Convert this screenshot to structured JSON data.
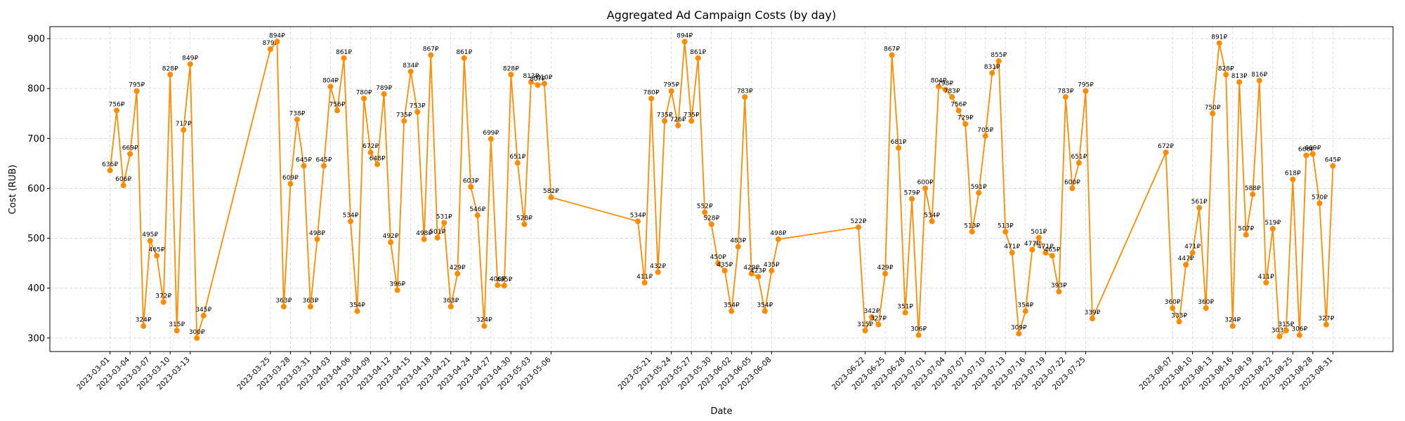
{
  "chart_data": {
    "type": "line",
    "title": "Aggregated Ad Campaign Costs (by day)",
    "xlabel": "Date",
    "ylabel": "Cost (RUB)",
    "color": "#ff8c00",
    "grid": true,
    "x": [
      "2023-03-01",
      "2023-03-02",
      "2023-03-03",
      "2023-03-04",
      "2023-03-05",
      "2023-03-06",
      "2023-03-07",
      "2023-03-08",
      "2023-03-09",
      "2023-03-10",
      "2023-03-11",
      "2023-03-12",
      "2023-03-13",
      "2023-03-14",
      "2023-03-15",
      "2023-03-25",
      "2023-03-26",
      "2023-03-27",
      "2023-03-28",
      "2023-03-29",
      "2023-03-30",
      "2023-03-31",
      "2023-04-01",
      "2023-04-02",
      "2023-04-03",
      "2023-04-04",
      "2023-04-05",
      "2023-04-06",
      "2023-04-07",
      "2023-04-08",
      "2023-04-09",
      "2023-04-10",
      "2023-04-11",
      "2023-04-12",
      "2023-04-13",
      "2023-04-14",
      "2023-04-15",
      "2023-04-16",
      "2023-04-17",
      "2023-04-18",
      "2023-04-19",
      "2023-04-20",
      "2023-04-21",
      "2023-04-22",
      "2023-04-23",
      "2023-04-24",
      "2023-04-25",
      "2023-04-26",
      "2023-04-27",
      "2023-04-28",
      "2023-04-29",
      "2023-04-30",
      "2023-05-01",
      "2023-05-02",
      "2023-05-03",
      "2023-05-04",
      "2023-05-05",
      "2023-05-06",
      "2023-05-19",
      "2023-05-20",
      "2023-05-21",
      "2023-05-22",
      "2023-05-23",
      "2023-05-24",
      "2023-05-25",
      "2023-05-26",
      "2023-05-27",
      "2023-05-28",
      "2023-05-29",
      "2023-05-30",
      "2023-05-31",
      "2023-06-01",
      "2023-06-02",
      "2023-06-03",
      "2023-06-04",
      "2023-06-05",
      "2023-06-06",
      "2023-06-07",
      "2023-06-08",
      "2023-06-09",
      "2023-06-21",
      "2023-06-22",
      "2023-06-23",
      "2023-06-24",
      "2023-06-25",
      "2023-06-26",
      "2023-06-27",
      "2023-06-28",
      "2023-06-29",
      "2023-06-30",
      "2023-07-01",
      "2023-07-02",
      "2023-07-03",
      "2023-07-04",
      "2023-07-05",
      "2023-07-06",
      "2023-07-07",
      "2023-07-08",
      "2023-07-09",
      "2023-07-10",
      "2023-07-11",
      "2023-07-12",
      "2023-07-13",
      "2023-07-14",
      "2023-07-15",
      "2023-07-16",
      "2023-07-17",
      "2023-07-18",
      "2023-07-19",
      "2023-07-20",
      "2023-07-21",
      "2023-07-22",
      "2023-07-23",
      "2023-07-24",
      "2023-07-25",
      "2023-07-26",
      "2023-08-06",
      "2023-08-07",
      "2023-08-08",
      "2023-08-09",
      "2023-08-10",
      "2023-08-11",
      "2023-08-12",
      "2023-08-13",
      "2023-08-14",
      "2023-08-15",
      "2023-08-16",
      "2023-08-17",
      "2023-08-18",
      "2023-08-19",
      "2023-08-20",
      "2023-08-21",
      "2023-08-22",
      "2023-08-23",
      "2023-08-24",
      "2023-08-25",
      "2023-08-26",
      "2023-08-27",
      "2023-08-28",
      "2023-08-29",
      "2023-08-30",
      "2023-08-31"
    ],
    "values": [
      636,
      756,
      606,
      669,
      795,
      324,
      495,
      465,
      372,
      828,
      315,
      717,
      849,
      300,
      345,
      879,
      894,
      363,
      609,
      738,
      645,
      363,
      498,
      645,
      804,
      756,
      861,
      534,
      354,
      780,
      672,
      648,
      789,
      492,
      396,
      735,
      834,
      753,
      498,
      867,
      501,
      531,
      363,
      429,
      861,
      603,
      546,
      324,
      699,
      406,
      405,
      828,
      651,
      528,
      813,
      807,
      810,
      582,
      534,
      411,
      780,
      432,
      735,
      795,
      726,
      894,
      735,
      861,
      552,
      528,
      450,
      435,
      354,
      483,
      783,
      429,
      423,
      354,
      435,
      498,
      522,
      315,
      342,
      327,
      429,
      867,
      681,
      351,
      579,
      306,
      600,
      534,
      804,
      798,
      783,
      756,
      729,
      513,
      591,
      705,
      831,
      855,
      513,
      471,
      309,
      354,
      477,
      501,
      471,
      465,
      393,
      783,
      600,
      651,
      795,
      339,
      672,
      360,
      333,
      447,
      471,
      561,
      360,
      750,
      891,
      828,
      324,
      813,
      507,
      588,
      816,
      411,
      519,
      303,
      315,
      618,
      306,
      666,
      669,
      570,
      327,
      645
    ],
    "value_labels": [
      "636₽",
      "756₽",
      "606₽",
      "669₽",
      "795₽",
      "324₽",
      "495₽",
      "465₽",
      "372₽",
      "828₽",
      "315₽",
      "717₽",
      "849₽",
      "300₽",
      "345₽",
      "879₽",
      "894₽",
      "363₽",
      "609₽",
      "738₽",
      "645₽",
      "363₽",
      "498₽",
      "645₽",
      "804₽",
      "756₽",
      "861₽",
      "534₽",
      "354₽",
      "780₽",
      "672₽",
      "648₽",
      "789₽",
      "492₽",
      "396₽",
      "735₽",
      "834₽",
      "753₽",
      "498₽",
      "867₽",
      "501₽",
      "531₽",
      "363₽",
      "429₽",
      "861₽",
      "603₽",
      "546₽",
      "324₽",
      "699₽",
      "406₽",
      "405₽",
      "828₽",
      "651₽",
      "528₽",
      "813₽",
      "807₽",
      "810₽",
      "582₽",
      "534₽",
      "411₽",
      "780₽",
      "432₽",
      "735₽",
      "795₽",
      "726₽",
      "894₽",
      "735₽",
      "861₽",
      "552₽",
      "528₽",
      "450₽",
      "435₽",
      "354₽",
      "483₽",
      "783₽",
      "429₽",
      "423₽",
      "354₽",
      "435₽",
      "498₽",
      "522₽",
      "315₽",
      "342₽",
      "327₽",
      "429₽",
      "867₽",
      "681₽",
      "351₽",
      "579₽",
      "306₽",
      "600₽",
      "534₽",
      "804₽",
      "798₽",
      "783₽",
      "756₽",
      "729₽",
      "513₽",
      "591₽",
      "705₽",
      "831₽",
      "855₽",
      "513₽",
      "471₽",
      "309₽",
      "354₽",
      "477₽",
      "501₽",
      "471₽",
      "465₽",
      "393₽",
      "783₽",
      "600₽",
      "651₽",
      "795₽",
      "339₽",
      "672₽",
      "360₽",
      "333₽",
      "447₽",
      "471₽",
      "561₽",
      "360₽",
      "750₽",
      "891₽",
      "828₽",
      "324₽",
      "813₽",
      "507₽",
      "588₽",
      "816₽",
      "411₽",
      "519₽",
      "303₽",
      "315₽",
      "618₽",
      "306₽",
      "666₽",
      "669₽",
      "570₽",
      "327₽",
      "645₽"
    ],
    "xlim": [
      "2023-02-20",
      "2023-09-09"
    ],
    "xticks": [
      "2023-03-01",
      "2023-03-04",
      "2023-03-07",
      "2023-03-10",
      "2023-03-13",
      "2023-03-25",
      "2023-03-28",
      "2023-03-31",
      "2023-04-03",
      "2023-04-06",
      "2023-04-09",
      "2023-04-12",
      "2023-04-15",
      "2023-04-18",
      "2023-04-21",
      "2023-04-24",
      "2023-04-27",
      "2023-04-30",
      "2023-05-03",
      "2023-05-06",
      "2023-05-21",
      "2023-05-24",
      "2023-05-27",
      "2023-05-30",
      "2023-06-02",
      "2023-06-05",
      "2023-06-08",
      "2023-06-22",
      "2023-06-25",
      "2023-06-28",
      "2023-07-01",
      "2023-07-04",
      "2023-07-07",
      "2023-07-10",
      "2023-07-13",
      "2023-07-16",
      "2023-07-19",
      "2023-07-22",
      "2023-07-25",
      "2023-08-07",
      "2023-08-10",
      "2023-08-13",
      "2023-08-16",
      "2023-08-19",
      "2023-08-22",
      "2023-08-25",
      "2023-08-28",
      "2023-08-31"
    ],
    "ylim": [
      273,
      924
    ],
    "yticks": [
      300,
      400,
      500,
      600,
      700,
      800,
      900
    ]
  }
}
